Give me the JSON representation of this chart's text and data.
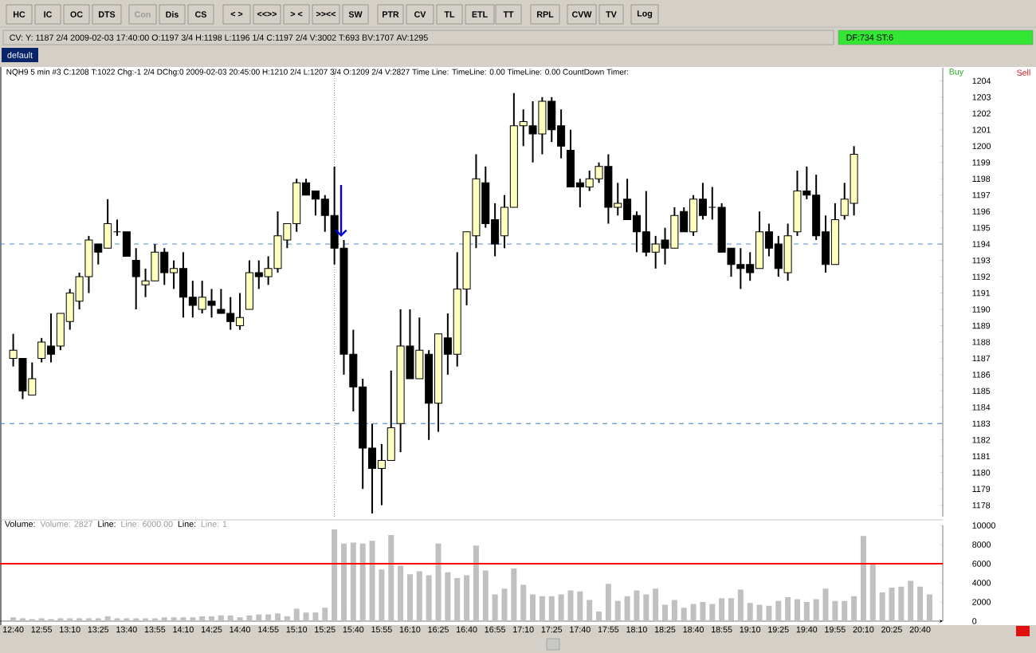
{
  "chart_data": [
    {
      "type": "other",
      "annotations": [
        "HC",
        "IC",
        "OC",
        "DTS",
        "Con",
        "Dis",
        "CS",
        "< >",
        "<<>>",
        "> <",
        ">><<",
        "SW",
        "PTR",
        "CV",
        "TL",
        "ETL",
        "TT",
        "RPL",
        "CVW",
        "TV",
        "Log",
        "CV: Y: 1187 2/4  2009-02-03  17:40:00  O:1197 3/4  H:1198  L:1196 1/4  C:1197 2/4  V:3002  T:693  BV:1707  AV:1295",
        "DF:734  ST:6",
        "default"
      ]
    },
    {
      "type": "candlestick",
      "title": "NQH9  5 min   #3  C:1208  T:1022  Chg:-1 2/4  DChg:0  2009-02-03  20:45:00  H:1210 2/4  L:1207 3/4  O:1209 2/4  V:2827  Time Line:  TimeLine: 0.00  TimeLine: 0.00  CountDown Timer:",
      "annotations": [
        "Buy",
        "Sell"
      ],
      "x": [
        "2009-02-03T12:40",
        "2009-02-03T12:45",
        "2009-02-03T12:50",
        "2009-02-03T12:55",
        "2009-02-03T13:00",
        "2009-02-03T13:05",
        "2009-02-03T13:10",
        "2009-02-03T13:15",
        "2009-02-03T13:20",
        "2009-02-03T13:25",
        "2009-02-03T13:30",
        "2009-02-03T13:35",
        "2009-02-03T13:40",
        "2009-02-03T13:45",
        "2009-02-03T13:50",
        "2009-02-03T13:55",
        "2009-02-03T14:00",
        "2009-02-03T14:05",
        "2009-02-03T14:10",
        "2009-02-03T14:15",
        "2009-02-03T14:20",
        "2009-02-03T14:25",
        "2009-02-03T14:30",
        "2009-02-03T14:35",
        "2009-02-03T14:40",
        "2009-02-03T14:45",
        "2009-02-03T14:50",
        "2009-02-03T14:55",
        "2009-02-03T15:00",
        "2009-02-03T15:05",
        "2009-02-03T15:10",
        "2009-02-03T15:15",
        "2009-02-03T15:20",
        "2009-02-03T15:25",
        "2009-02-03T15:30",
        "2009-02-03T15:35",
        "2009-02-03T15:40",
        "2009-02-03T15:45",
        "2009-02-03T15:50",
        "2009-02-03T15:55",
        "2009-02-03T16:00",
        "2009-02-03T16:05",
        "2009-02-03T16:10",
        "2009-02-03T16:15",
        "2009-02-03T16:20",
        "2009-02-03T16:25",
        "2009-02-03T16:30",
        "2009-02-03T16:35",
        "2009-02-03T16:40",
        "2009-02-03T16:45",
        "2009-02-03T16:50",
        "2009-02-03T16:55",
        "2009-02-03T17:00",
        "2009-02-03T17:05",
        "2009-02-03T17:10",
        "2009-02-03T17:15",
        "2009-02-03T17:20",
        "2009-02-03T17:25",
        "2009-02-03T17:30",
        "2009-02-03T17:35",
        "2009-02-03T17:40",
        "2009-02-03T17:45",
        "2009-02-03T17:50",
        "2009-02-03T17:55",
        "2009-02-03T18:00",
        "2009-02-03T18:05",
        "2009-02-03T18:10",
        "2009-02-03T18:15",
        "2009-02-03T18:20",
        "2009-02-03T18:25",
        "2009-02-03T18:30",
        "2009-02-03T18:35",
        "2009-02-03T18:40",
        "2009-02-03T18:45",
        "2009-02-03T18:50",
        "2009-02-03T18:55",
        "2009-02-03T19:00",
        "2009-02-03T19:05",
        "2009-02-03T19:10",
        "2009-02-03T19:15",
        "2009-02-03T19:20",
        "2009-02-03T19:25",
        "2009-02-03T19:30",
        "2009-02-03T19:35",
        "2009-02-03T19:40",
        "2009-02-03T19:45",
        "2009-02-03T19:50",
        "2009-02-03T19:55",
        "2009-02-03T20:00",
        "2009-02-03T20:05"
      ],
      "ohlc": [
        [
          1187,
          1188.5,
          1186.5,
          1187.5
        ],
        [
          1187,
          1187,
          1184.5,
          1185
        ],
        [
          1184.75,
          1186.75,
          1184.75,
          1185.75
        ],
        [
          1187,
          1188.25,
          1186.75,
          1188
        ],
        [
          1187.75,
          1189.75,
          1186.75,
          1187.25
        ],
        [
          1187.75,
          1189.75,
          1187.5,
          1189.75
        ],
        [
          1189.25,
          1191.25,
          1188.75,
          1191
        ],
        [
          1190.5,
          1192.25,
          1190,
          1192
        ],
        [
          1192,
          1194.5,
          1191,
          1194.25
        ],
        [
          1194,
          1194,
          1192.75,
          1193.5
        ],
        [
          1193.75,
          1196.75,
          1193.75,
          1195.25
        ],
        [
          1194.75,
          1195.5,
          1194.5,
          1194.75
        ],
        [
          1194.75,
          1194.75,
          1193.25,
          1193.25
        ],
        [
          1193,
          1193.75,
          1190,
          1192
        ],
        [
          1191.5,
          1192.5,
          1190.75,
          1191.75
        ],
        [
          1191.75,
          1194,
          1191.75,
          1193.5
        ],
        [
          1193.5,
          1193.75,
          1191.5,
          1192.25
        ],
        [
          1192.25,
          1193,
          1191.25,
          1192.5
        ],
        [
          1192.5,
          1193.5,
          1189.5,
          1190.75
        ],
        [
          1190.75,
          1191.75,
          1189.5,
          1190.25
        ],
        [
          1190,
          1191.75,
          1189.75,
          1190.75
        ],
        [
          1190.5,
          1191.25,
          1189.5,
          1190.25
        ],
        [
          1190,
          1191.25,
          1189.75,
          1189.75
        ],
        [
          1189.75,
          1190.75,
          1188.75,
          1189.25
        ],
        [
          1189,
          1191,
          1188.75,
          1189.5
        ],
        [
          1190,
          1193,
          1190,
          1192.25
        ],
        [
          1192.25,
          1193,
          1191.25,
          1192
        ],
        [
          1192,
          1193.25,
          1191.5,
          1192.5
        ],
        [
          1192.5,
          1196,
          1192.25,
          1194.5
        ],
        [
          1194.25,
          1195.25,
          1193.75,
          1195.25
        ],
        [
          1195.25,
          1198,
          1194.75,
          1197.75
        ],
        [
          1197.75,
          1198,
          1197,
          1197
        ],
        [
          1197.25,
          1197.25,
          1195.75,
          1196.75
        ],
        [
          1196.75,
          1197,
          1194.75,
          1195.75
        ],
        [
          1195.75,
          1198.75,
          1192.75,
          1193.75
        ],
        [
          1193.75,
          1194.25,
          1186,
          1187.25
        ],
        [
          1187.25,
          1188.75,
          1183.75,
          1185.25
        ],
        [
          1185.25,
          1185.75,
          1179,
          1181.5
        ],
        [
          1181.5,
          1183,
          1177.5,
          1180.25
        ],
        [
          1180.25,
          1181.75,
          1178,
          1180.75
        ],
        [
          1180.75,
          1186.25,
          1180.75,
          1182.75
        ],
        [
          1183,
          1190,
          1181.25,
          1187.75
        ],
        [
          1187.75,
          1190,
          1185.75,
          1185.75
        ],
        [
          1185.75,
          1189.5,
          1185.75,
          1187.5
        ],
        [
          1187.25,
          1187.5,
          1182,
          1184.25
        ],
        [
          1184.25,
          1188.5,
          1182.5,
          1188.5
        ],
        [
          1188.25,
          1189.75,
          1186,
          1187.25
        ],
        [
          1187.25,
          1193.5,
          1186.5,
          1191.25
        ],
        [
          1191.25,
          1194.75,
          1190.25,
          1194.75
        ],
        [
          1194.5,
          1199.5,
          1193.75,
          1198
        ],
        [
          1197.75,
          1198.75,
          1195,
          1195.25
        ],
        [
          1195.5,
          1196.5,
          1193.25,
          1194
        ],
        [
          1194.5,
          1197,
          1193.75,
          1196.25
        ],
        [
          1196.25,
          1203.25,
          1196.25,
          1201.25
        ],
        [
          1201.25,
          1202.25,
          1200,
          1201.5
        ],
        [
          1201.25,
          1202.75,
          1199,
          1200.75
        ],
        [
          1200.75,
          1203,
          1199.5,
          1202.75
        ],
        [
          1202.75,
          1203,
          1200.25,
          1201
        ],
        [
          1201.25,
          1202.25,
          1199.25,
          1200
        ],
        [
          1199.75,
          1201,
          1197.5,
          1197.5
        ],
        [
          1197.75,
          1198,
          1196.25,
          1197.5
        ],
        [
          1197.5,
          1198.5,
          1197.25,
          1198
        ],
        [
          1198,
          1199,
          1197.75,
          1198.75
        ],
        [
          1198.75,
          1199.5,
          1195.25,
          1196.25
        ],
        [
          1196.25,
          1197.75,
          1195.75,
          1196.5
        ],
        [
          1196.75,
          1198,
          1195.5,
          1195.5
        ],
        [
          1195.75,
          1196,
          1193.5,
          1194.75
        ],
        [
          1194.75,
          1197.25,
          1193.25,
          1193.5
        ],
        [
          1193.5,
          1194.5,
          1192.5,
          1194
        ],
        [
          1194.25,
          1195,
          1192.75,
          1193.75
        ],
        [
          1193.75,
          1196.25,
          1193.75,
          1195.75
        ],
        [
          1196,
          1196.25,
          1194.75,
          1194.75
        ],
        [
          1194.75,
          1197,
          1194.5,
          1196.75
        ],
        [
          1196.75,
          1197.75,
          1195.5,
          1195.75
        ],
        [
          1196.25,
          1197.5,
          1195.5,
          1196.25
        ],
        [
          1196.25,
          1196.5,
          1193.5,
          1193.5
        ],
        [
          1193.75,
          1193.75,
          1192,
          1192.75
        ],
        [
          1192.75,
          1193.75,
          1191.25,
          1192.5
        ],
        [
          1192.75,
          1193.5,
          1191.75,
          1192.25
        ],
        [
          1192.5,
          1196,
          1192.5,
          1194.75
        ],
        [
          1194.75,
          1195.25,
          1193.25,
          1193.75
        ],
        [
          1194,
          1194.5,
          1192,
          1192.5
        ],
        [
          1192.25,
          1195.25,
          1191.75,
          1194.5
        ],
        [
          1194.75,
          1198.5,
          1194.5,
          1197.25
        ],
        [
          1197.25,
          1198.75,
          1196.75,
          1197
        ],
        [
          1197,
          1198.25,
          1194.25,
          1194.5
        ],
        [
          1194.75,
          1195.75,
          1192.25,
          1192.75
        ],
        [
          1192.75,
          1196.5,
          1192.75,
          1195.5
        ],
        [
          1195.75,
          1197.75,
          1195.5,
          1196.75
        ],
        [
          1196.5,
          1200,
          1195.75,
          1199.5
        ]
      ],
      "xlim": [
        "2009-02-03T12:33",
        "2009-02-03T20:52"
      ],
      "ylim": [
        1177.3,
        1204.8
      ],
      "yticks": [
        1178,
        1179,
        1180,
        1181,
        1182,
        1183,
        1184,
        1185,
        1186,
        1187,
        1188,
        1189,
        1190,
        1191,
        1192,
        1193,
        1194,
        1195,
        1196,
        1197,
        1198,
        1199,
        1200,
        1201,
        1202,
        1203,
        1204
      ],
      "tick_labels": "y",
      "ref_lines": [
        {
          "axis": "y",
          "value": 1194,
          "color": "#3a7fd0",
          "line_style": "dashed"
        },
        {
          "axis": "y",
          "value": 1183,
          "color": "#3a7fd0",
          "line_style": "dashed"
        },
        {
          "axis": "x",
          "value": "2009-02-03T15:30",
          "color": "#808080",
          "line_style": "dotted"
        }
      ]
    },
    {
      "type": "bar",
      "annotations": [
        "Volume:",
        "Volume: 2827",
        "Line:",
        "Line: 6000.00",
        "Line:",
        "Line: 1"
      ],
      "x": [
        "2009-02-03T12:40",
        "2009-02-03T12:45",
        "2009-02-03T12:50",
        "2009-02-03T12:55",
        "2009-02-03T13:00",
        "2009-02-03T13:05",
        "2009-02-03T13:10",
        "2009-02-03T13:15",
        "2009-02-03T13:20",
        "2009-02-03T13:25",
        "2009-02-03T13:30",
        "2009-02-03T13:35",
        "2009-02-03T13:40",
        "2009-02-03T13:45",
        "2009-02-03T13:50",
        "2009-02-03T13:55",
        "2009-02-03T14:00",
        "2009-02-03T14:05",
        "2009-02-03T14:10",
        "2009-02-03T14:15",
        "2009-02-03T14:20",
        "2009-02-03T14:25",
        "2009-02-03T14:30",
        "2009-02-03T14:35",
        "2009-02-03T14:40",
        "2009-02-03T14:45",
        "2009-02-03T14:50",
        "2009-02-03T14:55",
        "2009-02-03T15:00",
        "2009-02-03T15:05",
        "2009-02-03T15:10",
        "2009-02-03T15:15",
        "2009-02-03T15:20",
        "2009-02-03T15:25",
        "2009-02-03T15:30",
        "2009-02-03T15:35",
        "2009-02-03T15:40",
        "2009-02-03T15:45",
        "2009-02-03T15:50",
        "2009-02-03T15:55",
        "2009-02-03T16:00",
        "2009-02-03T16:05",
        "2009-02-03T16:10",
        "2009-02-03T16:15",
        "2009-02-03T16:20",
        "2009-02-03T16:25",
        "2009-02-03T16:30",
        "2009-02-03T16:35",
        "2009-02-03T16:40",
        "2009-02-03T16:45",
        "2009-02-03T16:50",
        "2009-02-03T16:55",
        "2009-02-03T17:00",
        "2009-02-03T17:05",
        "2009-02-03T17:10",
        "2009-02-03T17:15",
        "2009-02-03T17:20",
        "2009-02-03T17:25",
        "2009-02-03T17:30",
        "2009-02-03T17:35",
        "2009-02-03T17:40",
        "2009-02-03T17:45",
        "2009-02-03T17:50",
        "2009-02-03T17:55",
        "2009-02-03T18:00",
        "2009-02-03T18:05",
        "2009-02-03T18:10",
        "2009-02-03T18:15",
        "2009-02-03T18:20",
        "2009-02-03T18:25",
        "2009-02-03T18:30",
        "2009-02-03T18:35",
        "2009-02-03T18:40",
        "2009-02-03T18:45",
        "2009-02-03T18:50",
        "2009-02-03T18:55",
        "2009-02-03T19:00",
        "2009-02-03T19:05",
        "2009-02-03T19:10",
        "2009-02-03T19:15",
        "2009-02-03T19:20",
        "2009-02-03T19:25",
        "2009-02-03T19:30",
        "2009-02-03T19:35",
        "2009-02-03T19:40",
        "2009-02-03T19:45",
        "2009-02-03T19:50",
        "2009-02-03T19:55",
        "2009-02-03T20:00",
        "2009-02-03T20:05",
        "2009-02-03T20:10",
        "2009-02-03T20:15",
        "2009-02-03T20:20",
        "2009-02-03T20:25",
        "2009-02-03T20:30",
        "2009-02-03T20:35",
        "2009-02-03T20:40",
        "2009-02-03T20:45"
      ],
      "values": [
        400,
        300,
        200,
        300,
        200,
        300,
        300,
        300,
        300,
        300,
        500,
        300,
        300,
        300,
        300,
        300,
        400,
        400,
        400,
        400,
        500,
        500,
        600,
        600,
        400,
        600,
        700,
        700,
        800,
        500,
        1300,
        900,
        900,
        1400,
        9600,
        8100,
        8200,
        8100,
        8400,
        5400,
        9000,
        5800,
        4900,
        5200,
        4800,
        8100,
        5100,
        4500,
        4800,
        7900,
        5300,
        2800,
        3400,
        5500,
        3800,
        2800,
        2600,
        2600,
        2800,
        3200,
        3100,
        2200,
        1000,
        3900,
        2100,
        2600,
        3200,
        2800,
        3400,
        1700,
        2200,
        1400,
        1800,
        2000,
        1800,
        2400,
        2400,
        3300,
        1900,
        1700,
        1600,
        2100,
        2500,
        2300,
        2000,
        2300,
        3400,
        2100,
        2100,
        2600,
        8900,
        6000,
        3000,
        3500,
        3600,
        4200,
        3600,
        2800
      ],
      "color": "#c0c0c0",
      "xlim": [
        "2009-02-03T12:33",
        "2009-02-03T20:52"
      ],
      "xticks": [
        {
          "value": "2009-02-03T12:40",
          "label": "12:40"
        },
        {
          "value": "2009-02-03T12:55",
          "label": "12:55"
        },
        {
          "value": "2009-02-03T13:10",
          "label": "13:10"
        },
        {
          "value": "2009-02-03T13:25",
          "label": "13:25"
        },
        {
          "value": "2009-02-03T13:40",
          "label": "13:40"
        },
        {
          "value": "2009-02-03T13:55",
          "label": "13:55"
        },
        {
          "value": "2009-02-03T14:10",
          "label": "14:10"
        },
        {
          "value": "2009-02-03T14:25",
          "label": "14:25"
        },
        {
          "value": "2009-02-03T14:40",
          "label": "14:40"
        },
        {
          "value": "2009-02-03T14:55",
          "label": "14:55"
        },
        {
          "value": "2009-02-03T15:10",
          "label": "15:10"
        },
        {
          "value": "2009-02-03T15:25",
          "label": "15:25"
        },
        {
          "value": "2009-02-03T15:40",
          "label": "15:40"
        },
        {
          "value": "2009-02-03T15:55",
          "label": "15:55"
        },
        {
          "value": "2009-02-03T16:10",
          "label": "16:10"
        },
        {
          "value": "2009-02-03T16:25",
          "label": "16:25"
        },
        {
          "value": "2009-02-03T16:40",
          "label": "16:40"
        },
        {
          "value": "2009-02-03T16:55",
          "label": "16:55"
        },
        {
          "value": "2009-02-03T17:10",
          "label": "17:10"
        },
        {
          "value": "2009-02-03T17:25",
          "label": "17:25"
        },
        {
          "value": "2009-02-03T17:40",
          "label": "17:40"
        },
        {
          "value": "2009-02-03T17:55",
          "label": "17:55"
        },
        {
          "value": "2009-02-03T18:10",
          "label": "18:10"
        },
        {
          "value": "2009-02-03T18:25",
          "label": "18:25"
        },
        {
          "value": "2009-02-03T18:40",
          "label": "18:40"
        },
        {
          "value": "2009-02-03T18:55",
          "label": "18:55"
        },
        {
          "value": "2009-02-03T19:10",
          "label": "19:10"
        },
        {
          "value": "2009-02-03T19:25",
          "label": "19:25"
        },
        {
          "value": "2009-02-03T19:40",
          "label": "19:40"
        },
        {
          "value": "2009-02-03T19:55",
          "label": "19:55"
        },
        {
          "value": "2009-02-03T20:10",
          "label": "20:10"
        },
        {
          "value": "2009-02-03T20:25",
          "label": "20:25"
        },
        {
          "value": "2009-02-03T20:40",
          "label": "20:40"
        }
      ],
      "ylim": [
        0,
        10000
      ],
      "yticks": [
        0,
        2000,
        4000,
        6000,
        8000,
        10000
      ],
      "ref_lines": [
        {
          "axis": "y",
          "value": 6000,
          "color": "#ff0000"
        }
      ]
    }
  ]
}
